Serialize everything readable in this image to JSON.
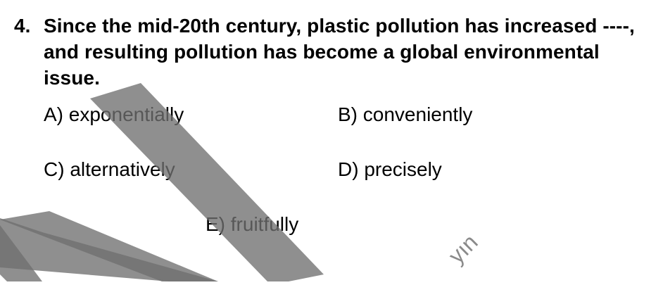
{
  "question": {
    "number": "4.",
    "stem": "Since the mid-20th century, plastic pollution has increased ----, and resulting pollution has become a global environmental issue.",
    "options": [
      {
        "letter": "A)",
        "text": "exponentially"
      },
      {
        "letter": "B)",
        "text": "conveniently"
      },
      {
        "letter": "C)",
        "text": "alternatively"
      },
      {
        "letter": "D)",
        "text": "precisely"
      },
      {
        "letter": "E)",
        "text": "fruitfully"
      }
    ]
  },
  "watermark": {
    "text": "yın",
    "color": "#707070"
  }
}
